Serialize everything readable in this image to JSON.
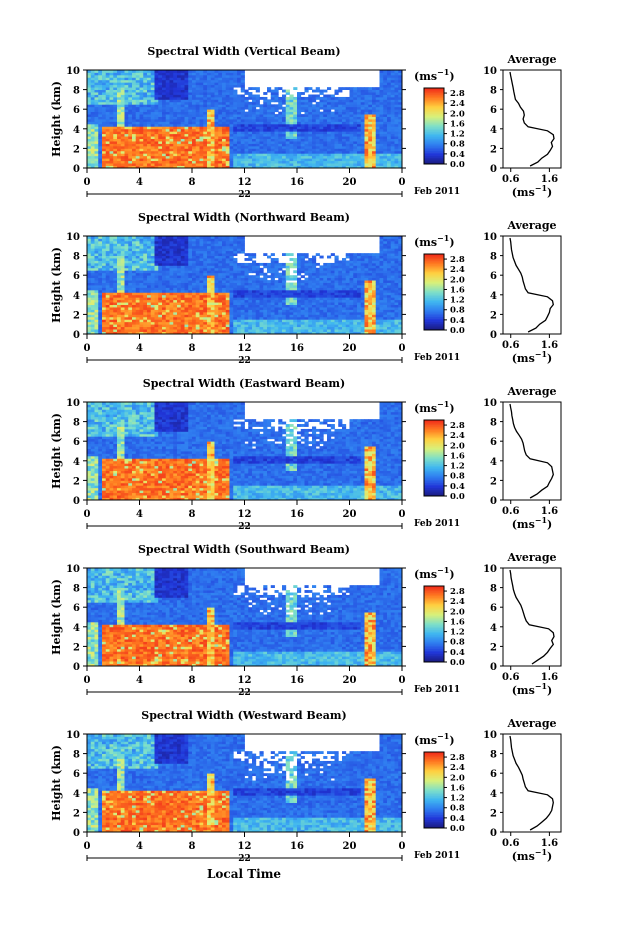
{
  "figure": {
    "x_axis_title": "Local Time",
    "colorbar_unit": "(ms",
    "colorbar_unit_exp": "−1",
    "colorbar_ticks": [
      "0.0",
      "0.4",
      "0.8",
      "1.2",
      "1.6",
      "2.0",
      "2.4",
      "2.8"
    ],
    "colorbar_range": [
      0.0,
      3.0
    ],
    "colormap": [
      "#1a1a7a",
      "#2035d8",
      "#2f7cf0",
      "#3fb6f0",
      "#7fe0c8",
      "#d8f07a",
      "#ffd040",
      "#ff7a20",
      "#f02a1a"
    ],
    "avg_title": "Average",
    "avg_unit": "(ms",
    "avg_unit_exp": "−1",
    "date_label": "Feb 2011",
    "day_label": "22"
  },
  "chart_data": [
    {
      "type": "heatmap",
      "title": "Spectral Width (Vertical Beam)",
      "ylabel": "Height (km)",
      "xlabel": "",
      "x_ticks": [
        "0",
        "4",
        "8",
        "12",
        "16",
        "20",
        "0"
      ],
      "x_range": [
        0,
        24
      ],
      "y_ticks": [
        "0",
        "2",
        "4",
        "6",
        "8",
        "10"
      ],
      "y_range": [
        0,
        10
      ],
      "value_unit": "ms⁻¹",
      "average_profile": {
        "x_ticks": [
          "0.6",
          "1.6"
        ],
        "x_range": [
          0.4,
          1.9
        ],
        "height_km": [
          0.2,
          0.6,
          1.0,
          1.4,
          1.8,
          2.2,
          2.6,
          3.0,
          3.4,
          3.8,
          4.2,
          4.6,
          5.0,
          5.4,
          5.8,
          6.2,
          6.6,
          7.0,
          7.4,
          7.8,
          8.2,
          8.6,
          9.0,
          9.4,
          9.8
        ],
        "width_ms": [
          1.1,
          1.3,
          1.4,
          1.55,
          1.62,
          1.68,
          1.65,
          1.72,
          1.7,
          1.55,
          1.05,
          0.95,
          0.92,
          0.95,
          0.93,
          0.85,
          0.8,
          0.72,
          0.7,
          0.68,
          0.66,
          0.64,
          0.62,
          0.6,
          0.58
        ]
      }
    },
    {
      "type": "heatmap",
      "title": "Spectral Width (Northward Beam)",
      "ylabel": "Height (km)",
      "xlabel": "",
      "x_ticks": [
        "0",
        "4",
        "8",
        "12",
        "16",
        "20",
        "0"
      ],
      "x_range": [
        0,
        24
      ],
      "y_ticks": [
        "0",
        "2",
        "4",
        "6",
        "8",
        "10"
      ],
      "y_range": [
        0,
        10
      ],
      "value_unit": "ms⁻¹",
      "average_profile": {
        "x_ticks": [
          "0.6",
          "1.6"
        ],
        "x_range": [
          0.4,
          1.9
        ],
        "height_km": [
          0.2,
          0.6,
          1.0,
          1.4,
          1.8,
          2.2,
          2.6,
          3.0,
          3.4,
          3.8,
          4.2,
          4.6,
          5.0,
          5.4,
          5.8,
          6.2,
          6.6,
          7.0,
          7.4,
          7.8,
          8.2,
          8.6,
          9.0,
          9.4,
          9.8
        ],
        "width_ms": [
          1.05,
          1.25,
          1.35,
          1.5,
          1.55,
          1.6,
          1.62,
          1.7,
          1.68,
          1.55,
          1.05,
          0.98,
          0.95,
          0.92,
          0.9,
          0.86,
          0.8,
          0.74,
          0.7,
          0.66,
          0.64,
          0.62,
          0.61,
          0.6,
          0.58
        ]
      }
    },
    {
      "type": "heatmap",
      "title": "Spectral Width (Eastward Beam)",
      "ylabel": "Height (km)",
      "xlabel": "",
      "x_ticks": [
        "0",
        "4",
        "8",
        "12",
        "16",
        "20",
        "0"
      ],
      "x_range": [
        0,
        24
      ],
      "y_ticks": [
        "0",
        "2",
        "4",
        "6",
        "8",
        "10"
      ],
      "y_range": [
        0,
        10
      ],
      "value_unit": "ms⁻¹",
      "average_profile": {
        "x_ticks": [
          "0.6",
          "1.6"
        ],
        "x_range": [
          0.4,
          1.9
        ],
        "height_km": [
          0.2,
          0.6,
          1.0,
          1.4,
          1.8,
          2.2,
          2.6,
          3.0,
          3.4,
          3.8,
          4.2,
          4.6,
          5.0,
          5.4,
          5.8,
          6.2,
          6.6,
          7.0,
          7.4,
          7.8,
          8.2,
          8.6,
          9.0,
          9.4,
          9.8
        ],
        "width_ms": [
          1.1,
          1.28,
          1.4,
          1.55,
          1.6,
          1.66,
          1.7,
          1.68,
          1.66,
          1.55,
          1.1,
          1.0,
          0.96,
          0.94,
          0.92,
          0.88,
          0.82,
          0.75,
          0.7,
          0.67,
          0.65,
          0.63,
          0.62,
          0.6,
          0.58
        ]
      }
    },
    {
      "type": "heatmap",
      "title": "Spectral Width (Southward Beam)",
      "ylabel": "Height (km)",
      "xlabel": "",
      "x_ticks": [
        "0",
        "4",
        "8",
        "12",
        "16",
        "20",
        "0"
      ],
      "x_range": [
        0,
        24
      ],
      "y_ticks": [
        "0",
        "2",
        "4",
        "6",
        "8",
        "10"
      ],
      "y_range": [
        0,
        10
      ],
      "value_unit": "ms⁻¹",
      "average_profile": {
        "x_ticks": [
          "0.6",
          "1.6"
        ],
        "x_range": [
          0.4,
          1.9
        ],
        "height_km": [
          0.2,
          0.6,
          1.0,
          1.4,
          1.8,
          2.2,
          2.6,
          3.0,
          3.4,
          3.8,
          4.2,
          4.6,
          5.0,
          5.4,
          5.8,
          6.2,
          6.6,
          7.0,
          7.4,
          7.8,
          8.2,
          8.6,
          9.0,
          9.4,
          9.8
        ],
        "width_ms": [
          1.15,
          1.3,
          1.45,
          1.55,
          1.62,
          1.7,
          1.66,
          1.72,
          1.7,
          1.58,
          1.08,
          1.0,
          0.96,
          0.93,
          0.9,
          0.86,
          0.8,
          0.74,
          0.7,
          0.67,
          0.65,
          0.63,
          0.61,
          0.6,
          0.58
        ]
      }
    },
    {
      "type": "heatmap",
      "title": "Spectral Width (Westward Beam)",
      "ylabel": "Height (km)",
      "xlabel": "",
      "x_ticks": [
        "0",
        "4",
        "8",
        "12",
        "16",
        "20",
        "0"
      ],
      "x_range": [
        0,
        24
      ],
      "y_ticks": [
        "0",
        "2",
        "4",
        "6",
        "8",
        "10"
      ],
      "y_range": [
        0,
        10
      ],
      "value_unit": "ms⁻¹",
      "average_profile": {
        "x_ticks": [
          "0.6",
          "1.6"
        ],
        "x_range": [
          0.4,
          1.9
        ],
        "height_km": [
          0.2,
          0.6,
          1.0,
          1.4,
          1.8,
          2.2,
          2.6,
          3.0,
          3.4,
          3.8,
          4.2,
          4.6,
          5.0,
          5.4,
          5.8,
          6.2,
          6.6,
          7.0,
          7.4,
          7.8,
          8.2,
          8.6,
          9.0,
          9.4,
          9.8
        ],
        "width_ms": [
          1.1,
          1.28,
          1.4,
          1.52,
          1.6,
          1.66,
          1.68,
          1.7,
          1.68,
          1.55,
          1.05,
          0.98,
          0.95,
          0.92,
          0.9,
          0.85,
          0.8,
          0.74,
          0.7,
          0.66,
          0.64,
          0.62,
          0.61,
          0.6,
          0.58
        ]
      }
    }
  ]
}
